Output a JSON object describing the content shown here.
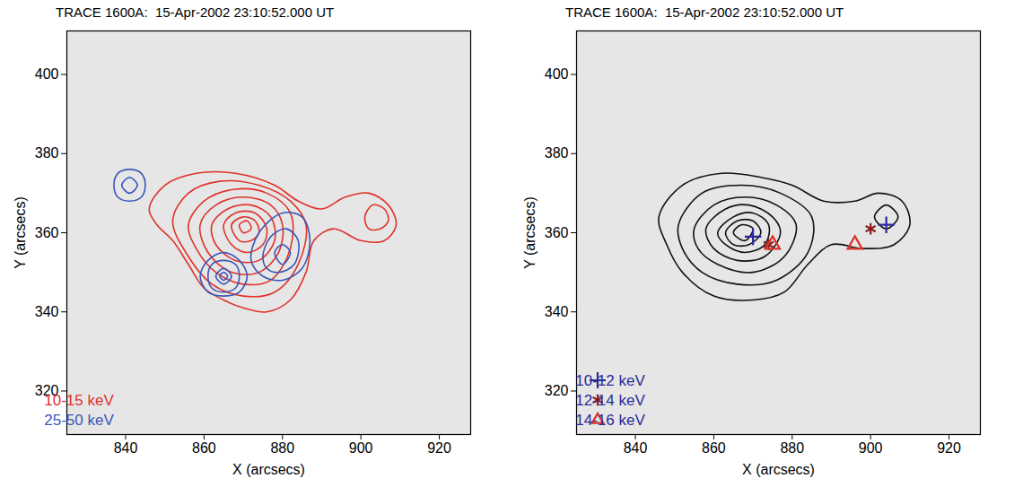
{
  "chart_data": [
    {
      "type": "contour",
      "title": "TRACE 1600A:  15-Apr-2002 23:10:52.000 UT",
      "x_label": "X (arcsecs)",
      "y_label": "Y (arcsecs)",
      "xlim": [
        825,
        928
      ],
      "ylim": [
        309,
        411
      ],
      "xticks": [
        840,
        860,
        880,
        900,
        920
      ],
      "yticks": [
        320,
        340,
        360,
        380,
        400
      ],
      "legend": "lower left",
      "series": [
        {
          "name": "10-15 keV",
          "color": "#e0322a",
          "type": "contour",
          "contours": [
            [
              [
                846,
                366
              ],
              [
                850,
                372
              ],
              [
                858,
                375
              ],
              [
                868,
                375
              ],
              [
                878,
                372
              ],
              [
                884,
                368
              ],
              [
                890,
                366
              ],
              [
                896,
                369
              ],
              [
                902,
                370
              ],
              [
                907,
                367
              ],
              [
                909,
                362
              ],
              [
                906,
                358
              ],
              [
                900,
                358
              ],
              [
                893,
                361
              ],
              [
                888,
                358
              ],
              [
                886,
                350
              ],
              [
                882,
                343
              ],
              [
                876,
                340
              ],
              [
                870,
                341
              ],
              [
                865,
                343
              ],
              [
                860,
                346
              ],
              [
                856,
                352
              ],
              [
                852,
                358
              ],
              [
                848,
                362
              ]
            ],
            [
              [
                901,
                364
              ],
              [
                903,
                367
              ],
              [
                906,
                366
              ],
              [
                907,
                363
              ],
              [
                905,
                361
              ],
              [
                902,
                361
              ]
            ],
            [
              [
                852,
                363
              ],
              [
                856,
                370
              ],
              [
                864,
                373
              ],
              [
                874,
                372
              ],
              [
                882,
                368
              ],
              [
                886,
                362
              ],
              [
                884,
                352
              ],
              [
                878,
                345
              ],
              [
                870,
                344
              ],
              [
                862,
                347
              ],
              [
                856,
                354
              ]
            ],
            [
              [
                856,
                362
              ],
              [
                860,
                368
              ],
              [
                868,
                371
              ],
              [
                876,
                370
              ],
              [
                882,
                365
              ],
              [
                882,
                356
              ],
              [
                877,
                348
              ],
              [
                870,
                347
              ],
              [
                863,
                350
              ],
              [
                858,
                356
              ]
            ],
            [
              [
                859,
                362
              ],
              [
                863,
                367
              ],
              [
                870,
                369
              ],
              [
                877,
                367
              ],
              [
                880,
                362
              ],
              [
                879,
                355
              ],
              [
                874,
                350
              ],
              [
                867,
                350
              ],
              [
                861,
                355
              ]
            ],
            [
              [
                862,
                362
              ],
              [
                866,
                366
              ],
              [
                872,
                367
              ],
              [
                877,
                364
              ],
              [
                878,
                358
              ],
              [
                874,
                353
              ],
              [
                868,
                353
              ],
              [
                863,
                357
              ]
            ],
            [
              [
                865,
                362
              ],
              [
                868,
                365
              ],
              [
                873,
                365
              ],
              [
                876,
                361
              ],
              [
                875,
                357
              ],
              [
                871,
                355
              ],
              [
                867,
                357
              ]
            ],
            [
              [
                867,
                362
              ],
              [
                870,
                364
              ],
              [
                873,
                363
              ],
              [
                874,
                360
              ],
              [
                872,
                358
              ],
              [
                869,
                358
              ]
            ],
            [
              [
                869,
                362
              ],
              [
                871,
                363
              ],
              [
                872,
                361
              ],
              [
                870,
                360
              ]
            ]
          ]
        },
        {
          "name": "25-50 keV",
          "color": "#3a56b8",
          "type": "contour",
          "contours": [
            [
              [
                837,
                372
              ],
              [
                838,
                375
              ],
              [
                841,
                376
              ],
              [
                844,
                375
              ],
              [
                845,
                372
              ],
              [
                844,
                369
              ],
              [
                841,
                368
              ],
              [
                838,
                369
              ]
            ],
            [
              [
                839,
                372
              ],
              [
                841,
                374
              ],
              [
                843,
                372
              ],
              [
                841,
                370
              ]
            ],
            [
              [
                859,
                349
              ],
              [
                861,
                353
              ],
              [
                865,
                355
              ],
              [
                869,
                353
              ],
              [
                871,
                349
              ],
              [
                869,
                345
              ],
              [
                865,
                344
              ],
              [
                861,
                345
              ]
            ],
            [
              [
                861,
                349
              ],
              [
                862,
                352
              ],
              [
                865,
                353
              ],
              [
                868,
                352
              ],
              [
                869,
                349
              ],
              [
                868,
                346
              ],
              [
                865,
                345
              ],
              [
                862,
                346
              ]
            ],
            [
              [
                863,
                349
              ],
              [
                865,
                351
              ],
              [
                867,
                349
              ],
              [
                865,
                347
              ]
            ],
            [
              [
                864,
                349
              ],
              [
                865,
                350
              ],
              [
                866,
                349
              ],
              [
                865,
                348
              ]
            ],
            [
              [
                872,
                353
              ],
              [
                874,
                360
              ],
              [
                880,
                365
              ],
              [
                885,
                364
              ],
              [
                887,
                358
              ],
              [
                885,
                351
              ],
              [
                880,
                348
              ],
              [
                875,
                349
              ]
            ],
            [
              [
                875,
                354
              ],
              [
                877,
                359
              ],
              [
                881,
                361
              ],
              [
                884,
                358
              ],
              [
                883,
                352
              ],
              [
                879,
                350
              ],
              [
                876,
                351
              ]
            ],
            [
              [
                878,
                355
              ],
              [
                880,
                357
              ],
              [
                882,
                355
              ],
              [
                880,
                352
              ]
            ]
          ]
        }
      ]
    },
    {
      "type": "contour",
      "title": "TRACE 1600A:  15-Apr-2002 23:10:52.000 UT",
      "x_label": "X (arcsecs)",
      "y_label": "Y (arcsecs)",
      "xlim": [
        825,
        928
      ],
      "ylim": [
        309,
        411
      ],
      "xticks": [
        840,
        860,
        880,
        900,
        920
      ],
      "yticks": [
        320,
        340,
        360,
        380,
        400
      ],
      "legend": "lower left",
      "series": [
        {
          "color": "#111111",
          "type": "contour",
          "contours": [
            [
              [
                846,
                364
              ],
              [
                852,
                372
              ],
              [
                862,
                375
              ],
              [
                872,
                374
              ],
              [
                880,
                372
              ],
              [
                888,
                368
              ],
              [
                896,
                368
              ],
              [
                902,
                370
              ],
              [
                908,
                368
              ],
              [
                910,
                362
              ],
              [
                906,
                357
              ],
              [
                898,
                356
              ],
              [
                890,
                357
              ],
              [
                884,
                352
              ],
              [
                878,
                345
              ],
              [
                870,
                343
              ],
              [
                860,
                344
              ],
              [
                852,
                350
              ],
              [
                848,
                357
              ]
            ],
            [
              [
                901,
                364
              ],
              [
                904,
                367
              ],
              [
                907,
                364
              ],
              [
                904,
                361
              ]
            ],
            [
              [
                851,
                362
              ],
              [
                857,
                370
              ],
              [
                867,
                372
              ],
              [
                877,
                370
              ],
              [
                885,
                364
              ],
              [
                884,
                355
              ],
              [
                876,
                348
              ],
              [
                866,
                347
              ],
              [
                857,
                350
              ],
              [
                852,
                356
              ]
            ],
            [
              [
                855,
                361
              ],
              [
                860,
                367
              ],
              [
                868,
                369
              ],
              [
                876,
                367
              ],
              [
                881,
                362
              ],
              [
                878,
                354
              ],
              [
                870,
                350
              ],
              [
                861,
                352
              ],
              [
                856,
                356
              ]
            ],
            [
              [
                858,
                361
              ],
              [
                863,
                366
              ],
              [
                869,
                367
              ],
              [
                875,
                364
              ],
              [
                877,
                360
              ],
              [
                873,
                354
              ],
              [
                866,
                353
              ],
              [
                860,
                356
              ]
            ],
            [
              [
                861,
                360
              ],
              [
                865,
                364
              ],
              [
                870,
                365
              ],
              [
                874,
                362
              ],
              [
                873,
                357
              ],
              [
                868,
                355
              ],
              [
                863,
                357
              ]
            ],
            [
              [
                863,
                360
              ],
              [
                866,
                363
              ],
              [
                870,
                363
              ],
              [
                872,
                360
              ],
              [
                869,
                357
              ],
              [
                865,
                357
              ]
            ],
            [
              [
                865,
                360
              ],
              [
                867,
                362
              ],
              [
                870,
                361
              ],
              [
                868,
                358
              ]
            ]
          ]
        },
        {
          "name": "10-12 keV",
          "color": "#2b2a9a",
          "type": "scatter",
          "marker": "plus",
          "x": [
            870,
            904
          ],
          "y": [
            359,
            362
          ]
        },
        {
          "name": "12-14 keV",
          "color": "#8b1a1a",
          "type": "scatter",
          "marker": "asterisk",
          "x": [
            874,
            900
          ],
          "y": [
            357,
            361
          ]
        },
        {
          "name": "14-16 keV",
          "color": "#d9302a",
          "type": "scatter",
          "marker": "triangle",
          "x": [
            875,
            896
          ],
          "y": [
            357,
            357
          ]
        }
      ]
    }
  ]
}
